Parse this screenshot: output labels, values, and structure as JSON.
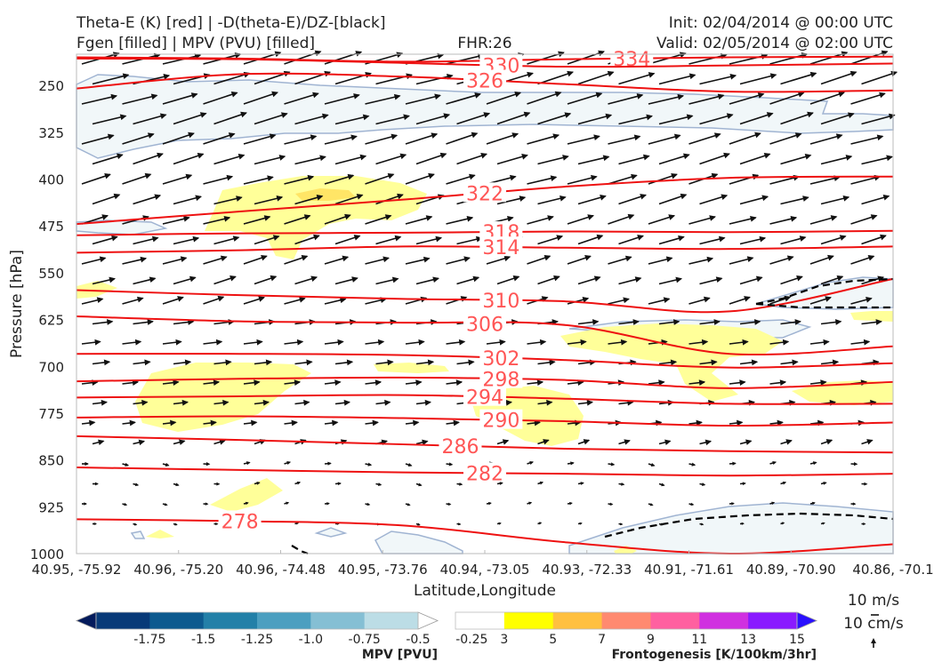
{
  "header": {
    "title_left_1": "Theta-E (K) [red] | -D(theta-E)/DZ-[black]",
    "title_left_2": "Fgen [filled] | MPV (PVU) [filled]",
    "fhr": "FHR:26",
    "init": "Init: 02/04/2014 @ 00:00 UTC",
    "valid": "Valid: 02/05/2014 @ 02:00 UTC"
  },
  "chart_data": {
    "type": "cross-section",
    "title": "Theta-E (K) [red] | -D(theta-E)/DZ-[black] / Fgen [filled] | MPV (PVU) [filled]",
    "xlabel": "Latitude,Longitude",
    "ylabel": "Pressure [hPa]",
    "x_ticks": [
      "40.95, -75.92",
      "40.96, -75.20",
      "40.96, -74.48",
      "40.95, -73.76",
      "40.94, -73.05",
      "40.93, -72.33",
      "40.91, -71.61",
      "40.89, -70.90",
      "40.86, -70.1"
    ],
    "y_ticks": [
      250,
      325,
      400,
      475,
      550,
      625,
      700,
      775,
      850,
      925,
      1000
    ],
    "ylim": [
      1000,
      200
    ],
    "theta_e_contours": [
      {
        "level": 334,
        "pressures": [
          205,
          207,
          212,
          208,
          205,
          204
        ],
        "label": "334"
      },
      {
        "level": 330,
        "pressures": [
          207,
          208,
          214,
          220,
          218,
          215
        ],
        "label": "330"
      },
      {
        "level": 326,
        "pressures": [
          255,
          232,
          236,
          248,
          260,
          258
        ],
        "label": "326"
      },
      {
        "level": 322,
        "pressures": [
          472,
          452,
          433,
          412,
          398,
          396
        ],
        "label": "322"
      },
      {
        "level": 318,
        "pressures": [
          490,
          487,
          486,
          484,
          485,
          483
        ],
        "label": "318"
      },
      {
        "level": 314,
        "pressures": [
          518,
          514,
          508,
          510,
          512,
          508
        ],
        "label": "314"
      },
      {
        "level": 310,
        "pressures": [
          578,
          586,
          592,
          596,
          612,
          560
        ],
        "label": "310"
      },
      {
        "level": 306,
        "pressures": [
          620,
          628,
          630,
          634,
          680,
          668
        ],
        "label": "306"
      },
      {
        "level": 302,
        "pressures": [
          680,
          680,
          682,
          690,
          702,
          695
        ],
        "label": "302"
      },
      {
        "level": 298,
        "pressures": [
          724,
          720,
          718,
          722,
          735,
          725
        ],
        "label": "298"
      },
      {
        "level": 294,
        "pressures": [
          750,
          748,
          746,
          752,
          760,
          760
        ],
        "label": "294"
      },
      {
        "level": 290,
        "pressures": [
          782,
          780,
          783,
          788,
          795,
          790
        ],
        "label": "290"
      },
      {
        "level": 286,
        "pressures": [
          812,
          818,
          825,
          832,
          836,
          838
        ],
        "label": "286"
      },
      {
        "level": 282,
        "pressures": [
          862,
          866,
          870,
          872,
          875,
          872
        ],
        "label": "282"
      },
      {
        "level": 278,
        "pressures": [
          945,
          948,
          955,
          982,
          1000,
          985
        ],
        "label": "278"
      }
    ],
    "vector_reference": [
      "10 m/s",
      "10 cm/s"
    ],
    "colorbars": [
      {
        "label": "MPV [PVU]",
        "ticks": [
          "-1.75",
          "-1.5",
          "-1.25",
          "-1.0",
          "-0.75",
          "-0.5",
          "-0.25"
        ],
        "colors": [
          "#041b5c",
          "#083a78",
          "#0d5a8f",
          "#2380a8",
          "#4c9fc0",
          "#85bfd4",
          "#bcdde6",
          "#ffffff"
        ]
      },
      {
        "label": "Frontogenesis [K/100km/3hr]",
        "ticks": [
          "3",
          "5",
          "7",
          "9",
          "11",
          "13",
          "15"
        ],
        "colors": [
          "#ffffff",
          "#ffff00",
          "#ffc040",
          "#ff8a70",
          "#ff60a0",
          "#d030e0",
          "#8a1aff",
          "#2a10ff"
        ]
      }
    ]
  }
}
